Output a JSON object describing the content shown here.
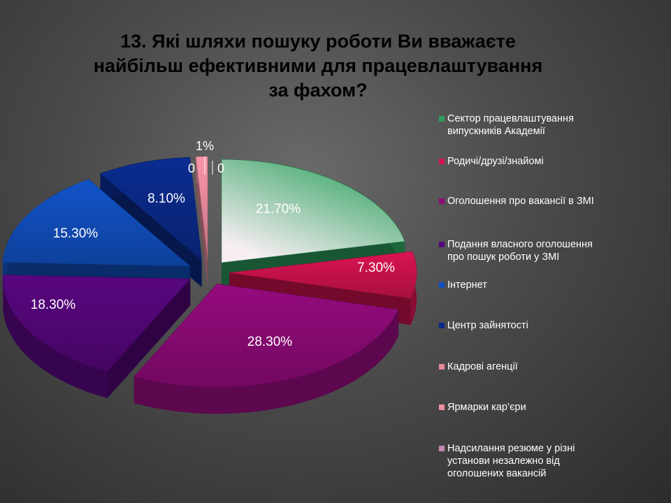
{
  "title_lines": [
    "13. Які шляхи пошуку роботи Ви вважаєте",
    "найбільш ефективними для працевлаштування",
    "за фахом?"
  ],
  "chart_data": {
    "type": "pie",
    "title": "13. Які шляхи пошуку роботи Ви вважаєте найбільш ефективними для працевлаштування за фахом?",
    "legend_position": "right",
    "style": "exploded 3d pie",
    "slices": [
      {
        "name": "Сектор працевлаштування випускників Академії",
        "value": 21.7,
        "label": "21.70%",
        "color": "#2e9e5e"
      },
      {
        "name": "Родичі/друзі/знайомі",
        "value": 7.3,
        "label": "7.30%",
        "color": "#d1134f"
      },
      {
        "name": "Оголошення про вакансії в ЗМІ",
        "value": 28.3,
        "label": "28.30%",
        "color": "#8e0a78"
      },
      {
        "name": "Подання власного оголошення про пошук роботи у ЗМІ",
        "value": 18.3,
        "label": "18.30%",
        "color": "#55067a"
      },
      {
        "name": "Інтернет",
        "value": 15.3,
        "label": "15.30%",
        "color": "#1150c0"
      },
      {
        "name": "Центр зайнятості",
        "value": 8.1,
        "label": "8.10%",
        "color": "#0a2a8a"
      },
      {
        "name": "Кадрові агенції",
        "value": 0,
        "label": "0",
        "color": "#e8889a"
      },
      {
        "name": "Ярмарки кар’єри",
        "value": 1,
        "label": "1%",
        "color": "#f08fa2"
      },
      {
        "name": "Надсилання резюме у різні установи незалежно від оголошених вакансій",
        "value": 0,
        "label": "0",
        "color": "#c48bb4"
      }
    ]
  },
  "legend": [
    {
      "lines": [
        "Сектор працевлаштування",
        "випускників Академії"
      ],
      "color": "#2e9e5e"
    },
    {
      "lines": [
        "Родичі/друзі/знайомі"
      ],
      "color": "#d1134f"
    },
    {
      "lines": [
        "Оголошення про вакансії в ЗМІ"
      ],
      "color": "#8e0a78"
    },
    {
      "lines": [
        "Подання власного оголошення",
        "про пошук роботи у ЗМІ"
      ],
      "color": "#55067a"
    },
    {
      "lines": [
        "Інтернет"
      ],
      "color": "#1150c0"
    },
    {
      "lines": [
        "Центр зайнятості"
      ],
      "color": "#0a2a8a"
    },
    {
      "lines": [
        "Кадрові агенції"
      ],
      "color": "#e8889a"
    },
    {
      "lines": [
        "Ярмарки кар’єри"
      ],
      "color": "#f08fa2"
    },
    {
      "lines": [
        "Надсилання резюме у різні",
        "установи незалежно від",
        "оголошених вакансій"
      ],
      "color": "#c48bb4"
    }
  ]
}
